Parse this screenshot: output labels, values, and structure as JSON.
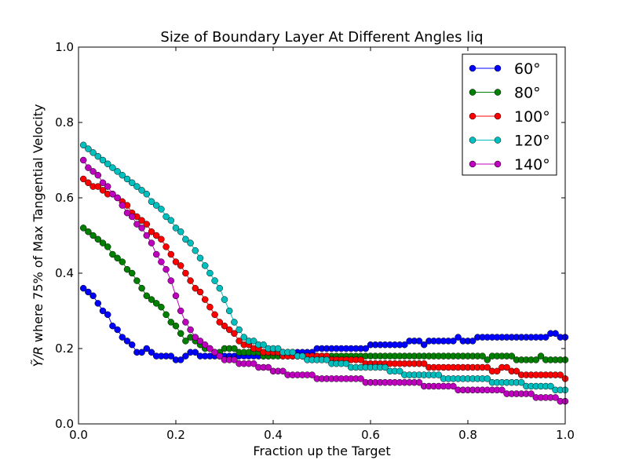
{
  "chart_data": {
    "type": "line",
    "title": "Size of Boundary Layer At Different Angles liq",
    "xlabel": "Fraction up the Target",
    "ylabel_math": "Ỹ/R",
    "ylabel_text": " where 75% of Max Tangential Velocity",
    "xlim": [
      0,
      1
    ],
    "ylim": [
      0,
      1
    ],
    "xticks": [
      "0.0",
      "0.2",
      "0.4",
      "0.6",
      "0.8",
      "1.0"
    ],
    "yticks": [
      "0.0",
      "0.2",
      "0.4",
      "0.6",
      "0.8",
      "1.0"
    ],
    "grid": false,
    "legend_position": "top-right",
    "x": [
      0.01,
      0.02,
      0.03,
      0.04,
      0.05,
      0.06,
      0.07,
      0.08,
      0.09,
      0.1,
      0.11,
      0.12,
      0.13,
      0.14,
      0.15,
      0.16,
      0.17,
      0.18,
      0.19,
      0.2,
      0.21,
      0.22,
      0.23,
      0.24,
      0.25,
      0.26,
      0.27,
      0.28,
      0.29,
      0.3,
      0.31,
      0.32,
      0.33,
      0.34,
      0.35,
      0.36,
      0.37,
      0.38,
      0.39,
      0.4,
      0.41,
      0.42,
      0.43,
      0.44,
      0.45,
      0.46,
      0.47,
      0.48,
      0.49,
      0.5,
      0.51,
      0.52,
      0.53,
      0.54,
      0.55,
      0.56,
      0.57,
      0.58,
      0.59,
      0.6,
      0.61,
      0.62,
      0.63,
      0.64,
      0.65,
      0.66,
      0.67,
      0.68,
      0.69,
      0.7,
      0.71,
      0.72,
      0.73,
      0.74,
      0.75,
      0.76,
      0.77,
      0.78,
      0.79,
      0.8,
      0.81,
      0.82,
      0.83,
      0.84,
      0.85,
      0.86,
      0.87,
      0.88,
      0.89,
      0.9,
      0.91,
      0.92,
      0.93,
      0.94,
      0.95,
      0.96,
      0.97,
      0.98,
      0.99,
      1.0
    ],
    "series": [
      {
        "name": "60°",
        "color": "#0000ff",
        "values": [
          0.36,
          0.35,
          0.34,
          0.32,
          0.3,
          0.29,
          0.26,
          0.25,
          0.23,
          0.22,
          0.21,
          0.19,
          0.19,
          0.2,
          0.19,
          0.18,
          0.18,
          0.18,
          0.18,
          0.17,
          0.17,
          0.18,
          0.19,
          0.19,
          0.18,
          0.18,
          0.18,
          0.18,
          0.18,
          0.18,
          0.18,
          0.18,
          0.18,
          0.18,
          0.18,
          0.18,
          0.18,
          0.18,
          0.18,
          0.19,
          0.19,
          0.19,
          0.19,
          0.19,
          0.19,
          0.19,
          0.19,
          0.19,
          0.2,
          0.2,
          0.2,
          0.2,
          0.2,
          0.2,
          0.2,
          0.2,
          0.2,
          0.2,
          0.2,
          0.21,
          0.21,
          0.21,
          0.21,
          0.21,
          0.21,
          0.21,
          0.21,
          0.22,
          0.22,
          0.22,
          0.21,
          0.22,
          0.22,
          0.22,
          0.22,
          0.22,
          0.22,
          0.23,
          0.22,
          0.22,
          0.22,
          0.23,
          0.23,
          0.23,
          0.23,
          0.23,
          0.23,
          0.23,
          0.23,
          0.23,
          0.23,
          0.23,
          0.23,
          0.23,
          0.23,
          0.23,
          0.24,
          0.24,
          0.23,
          0.23
        ]
      },
      {
        "name": "80°",
        "color": "#008000",
        "values": [
          0.52,
          0.51,
          0.5,
          0.49,
          0.48,
          0.47,
          0.45,
          0.44,
          0.43,
          0.41,
          0.4,
          0.38,
          0.36,
          0.34,
          0.33,
          0.32,
          0.31,
          0.29,
          0.27,
          0.26,
          0.24,
          0.22,
          0.23,
          0.22,
          0.21,
          0.2,
          0.2,
          0.19,
          0.19,
          0.2,
          0.2,
          0.2,
          0.19,
          0.19,
          0.19,
          0.19,
          0.19,
          0.18,
          0.18,
          0.18,
          0.18,
          0.18,
          0.18,
          0.18,
          0.18,
          0.18,
          0.18,
          0.18,
          0.18,
          0.18,
          0.18,
          0.18,
          0.18,
          0.18,
          0.18,
          0.18,
          0.18,
          0.18,
          0.18,
          0.18,
          0.18,
          0.18,
          0.18,
          0.18,
          0.18,
          0.18,
          0.18,
          0.18,
          0.18,
          0.18,
          0.18,
          0.18,
          0.18,
          0.18,
          0.18,
          0.18,
          0.18,
          0.18,
          0.18,
          0.18,
          0.18,
          0.18,
          0.18,
          0.17,
          0.18,
          0.18,
          0.18,
          0.18,
          0.18,
          0.17,
          0.17,
          0.17,
          0.17,
          0.17,
          0.18,
          0.17,
          0.17,
          0.17,
          0.17,
          0.17
        ]
      },
      {
        "name": "100°",
        "color": "#ff0000",
        "values": [
          0.65,
          0.64,
          0.63,
          0.63,
          0.62,
          0.61,
          0.61,
          0.6,
          0.59,
          0.58,
          0.56,
          0.55,
          0.54,
          0.53,
          0.51,
          0.5,
          0.49,
          0.47,
          0.45,
          0.43,
          0.42,
          0.4,
          0.38,
          0.36,
          0.35,
          0.33,
          0.31,
          0.29,
          0.27,
          0.26,
          0.25,
          0.24,
          0.22,
          0.21,
          0.21,
          0.2,
          0.2,
          0.19,
          0.19,
          0.19,
          0.19,
          0.18,
          0.18,
          0.18,
          0.18,
          0.18,
          0.18,
          0.18,
          0.18,
          0.18,
          0.18,
          0.17,
          0.17,
          0.17,
          0.17,
          0.17,
          0.17,
          0.17,
          0.16,
          0.16,
          0.16,
          0.16,
          0.16,
          0.16,
          0.16,
          0.16,
          0.16,
          0.16,
          0.16,
          0.16,
          0.16,
          0.15,
          0.15,
          0.15,
          0.15,
          0.15,
          0.15,
          0.15,
          0.15,
          0.15,
          0.15,
          0.15,
          0.15,
          0.15,
          0.14,
          0.14,
          0.15,
          0.15,
          0.14,
          0.14,
          0.13,
          0.13,
          0.13,
          0.13,
          0.13,
          0.13,
          0.13,
          0.13,
          0.13,
          0.12
        ]
      },
      {
        "name": "120°",
        "color": "#00bfbf",
        "values": [
          0.74,
          0.73,
          0.72,
          0.71,
          0.7,
          0.69,
          0.68,
          0.67,
          0.66,
          0.65,
          0.64,
          0.63,
          0.62,
          0.61,
          0.59,
          0.58,
          0.57,
          0.55,
          0.54,
          0.52,
          0.51,
          0.49,
          0.48,
          0.46,
          0.44,
          0.42,
          0.4,
          0.38,
          0.36,
          0.33,
          0.3,
          0.27,
          0.25,
          0.23,
          0.22,
          0.22,
          0.21,
          0.21,
          0.2,
          0.2,
          0.2,
          0.19,
          0.19,
          0.19,
          0.18,
          0.18,
          0.17,
          0.17,
          0.17,
          0.17,
          0.17,
          0.16,
          0.16,
          0.16,
          0.16,
          0.15,
          0.15,
          0.15,
          0.15,
          0.15,
          0.15,
          0.15,
          0.15,
          0.14,
          0.14,
          0.14,
          0.13,
          0.13,
          0.13,
          0.13,
          0.13,
          0.13,
          0.13,
          0.13,
          0.12,
          0.12,
          0.12,
          0.12,
          0.12,
          0.12,
          0.12,
          0.12,
          0.12,
          0.12,
          0.11,
          0.11,
          0.11,
          0.11,
          0.11,
          0.11,
          0.11,
          0.1,
          0.1,
          0.1,
          0.1,
          0.1,
          0.1,
          0.09,
          0.09,
          0.09
        ]
      },
      {
        "name": "140°",
        "color": "#bf00bf",
        "values": [
          0.7,
          0.68,
          0.67,
          0.66,
          0.64,
          0.63,
          0.61,
          0.6,
          0.58,
          0.56,
          0.55,
          0.53,
          0.52,
          0.5,
          0.48,
          0.45,
          0.43,
          0.41,
          0.38,
          0.34,
          0.3,
          0.27,
          0.25,
          0.23,
          0.22,
          0.21,
          0.2,
          0.19,
          0.18,
          0.17,
          0.17,
          0.17,
          0.16,
          0.16,
          0.16,
          0.16,
          0.15,
          0.15,
          0.15,
          0.14,
          0.14,
          0.14,
          0.13,
          0.13,
          0.13,
          0.13,
          0.13,
          0.13,
          0.12,
          0.12,
          0.12,
          0.12,
          0.12,
          0.12,
          0.12,
          0.12,
          0.12,
          0.12,
          0.11,
          0.11,
          0.11,
          0.11,
          0.11,
          0.11,
          0.11,
          0.11,
          0.11,
          0.11,
          0.11,
          0.11,
          0.1,
          0.1,
          0.1,
          0.1,
          0.1,
          0.1,
          0.1,
          0.09,
          0.09,
          0.09,
          0.09,
          0.09,
          0.09,
          0.09,
          0.09,
          0.09,
          0.09,
          0.08,
          0.08,
          0.08,
          0.08,
          0.08,
          0.08,
          0.07,
          0.07,
          0.07,
          0.07,
          0.07,
          0.06,
          0.06
        ]
      }
    ]
  }
}
